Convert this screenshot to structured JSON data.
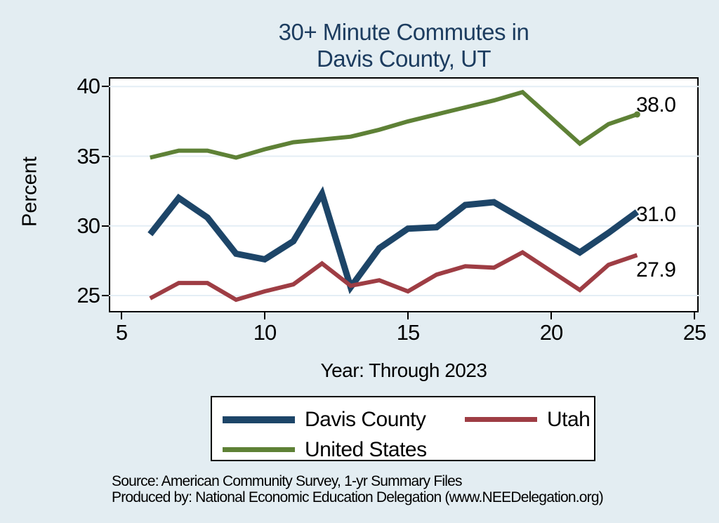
{
  "header": {
    "title_line1": "30+ Minute Commutes in",
    "title_line2": "Davis County, UT"
  },
  "chart_data": {
    "type": "line",
    "title": "30+ Minute Commutes in Davis County, UT",
    "xlabel": "Year: Through 2023",
    "ylabel": "Percent",
    "x": [
      6,
      7,
      8,
      9,
      10,
      11,
      12,
      13,
      14,
      15,
      16,
      17,
      18,
      19,
      21,
      22,
      23
    ],
    "xticks": [
      5,
      10,
      15,
      20,
      25
    ],
    "yticks": [
      25,
      30,
      35,
      40
    ],
    "xlim": [
      5,
      25
    ],
    "ylim": [
      23.8,
      40.7
    ],
    "grid": true,
    "legend_position": "bottom",
    "background_color": "#e3edf2",
    "plot_background": "#ffffff",
    "gridline_color": "#e4eef5",
    "series": [
      {
        "name": "Davis County",
        "color": "#1d4568",
        "line_width": 9,
        "end_label": "31.0",
        "end_marker": false,
        "values": [
          29.4,
          32.0,
          30.6,
          28.0,
          27.6,
          28.9,
          32.3,
          25.6,
          28.4,
          29.8,
          29.9,
          31.5,
          31.7,
          30.5,
          28.1,
          29.5,
          31.0
        ]
      },
      {
        "name": "Utah",
        "color": "#9e3d44",
        "line_width": 6,
        "end_label": "27.9",
        "end_marker": false,
        "values": [
          24.8,
          25.9,
          25.9,
          24.7,
          25.3,
          25.8,
          27.3,
          25.7,
          26.1,
          25.3,
          26.5,
          27.1,
          27.0,
          28.1,
          25.4,
          27.2,
          27.9
        ]
      },
      {
        "name": "United States",
        "color": "#5e8136",
        "line_width": 6,
        "end_label": "38.0",
        "end_marker": true,
        "values": [
          34.9,
          35.4,
          35.4,
          34.9,
          35.5,
          36.0,
          36.2,
          36.4,
          36.9,
          37.5,
          38.0,
          38.5,
          39.0,
          39.6,
          35.9,
          37.3,
          38.0
        ]
      }
    ]
  },
  "footer": {
    "source": "Source: American Community Survey, 1-yr Summary Files",
    "produced_by": "Produced by: National Economic Education Delegation (www.NEEDelegation.org)"
  }
}
